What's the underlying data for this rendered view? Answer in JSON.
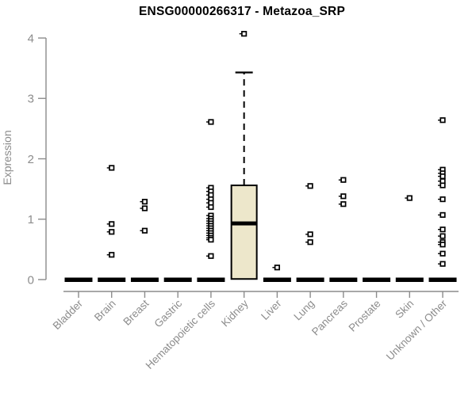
{
  "chart_data": {
    "type": "boxplot",
    "title": "ENSG00000266317 - Metazoa_SRP",
    "ylabel": "Expression",
    "xlabel": "",
    "ylim": [
      0,
      4
    ],
    "yticks": [
      0,
      1,
      2,
      3,
      4
    ],
    "grid": false,
    "legend": "none",
    "marker_shape": "open-square",
    "categories": [
      {
        "label": "Bladder",
        "zero_bar": true,
        "points": []
      },
      {
        "label": "Brain",
        "zero_bar": true,
        "points": [
          1.85,
          0.92,
          0.79,
          0.41
        ]
      },
      {
        "label": "Breast",
        "zero_bar": true,
        "points": [
          1.29,
          1.18,
          0.81
        ]
      },
      {
        "label": "Gastric",
        "zero_bar": true,
        "points": []
      },
      {
        "label": "Hematopoietic cells",
        "zero_bar": true,
        "points": [
          2.61,
          1.52,
          1.46,
          1.4,
          1.33,
          1.27,
          1.2,
          1.06,
          1.01,
          0.97,
          0.93,
          0.89,
          0.85,
          0.81,
          0.77,
          0.73,
          0.69,
          0.66,
          0.39
        ]
      },
      {
        "label": "Kidney",
        "zero_bar": false,
        "points": [
          4.07
        ],
        "box": {
          "q1": 0.01,
          "median": 0.93,
          "q3": 1.56,
          "whisker_low": 0.01,
          "whisker_high": 3.43
        }
      },
      {
        "label": "Liver",
        "zero_bar": true,
        "points": [
          0.2
        ]
      },
      {
        "label": "Lung",
        "zero_bar": true,
        "points": [
          1.55,
          0.75,
          0.62
        ]
      },
      {
        "label": "Pancreas",
        "zero_bar": true,
        "points": [
          1.65,
          1.38,
          1.25
        ]
      },
      {
        "label": "Prostate",
        "zero_bar": true,
        "points": []
      },
      {
        "label": "Skin",
        "zero_bar": true,
        "points": [
          1.35
        ]
      },
      {
        "label": "Unknown / Other",
        "zero_bar": true,
        "points": [
          2.64,
          1.82,
          1.76,
          1.71,
          1.63,
          1.56,
          1.33,
          1.07,
          0.83,
          0.72,
          0.62,
          0.58,
          0.43,
          0.26
        ]
      }
    ],
    "colors": {
      "box_fill": "#EDE7CB",
      "box_stroke": "#000000",
      "median": "#000000",
      "whisker": "#000000",
      "zero_bar": "#000000",
      "marker": "#000000",
      "marker_fill": "#FFFFFF",
      "axis": "#8C8C8C",
      "tick_text": "#8C8C8C",
      "title_text": "#000000"
    }
  }
}
